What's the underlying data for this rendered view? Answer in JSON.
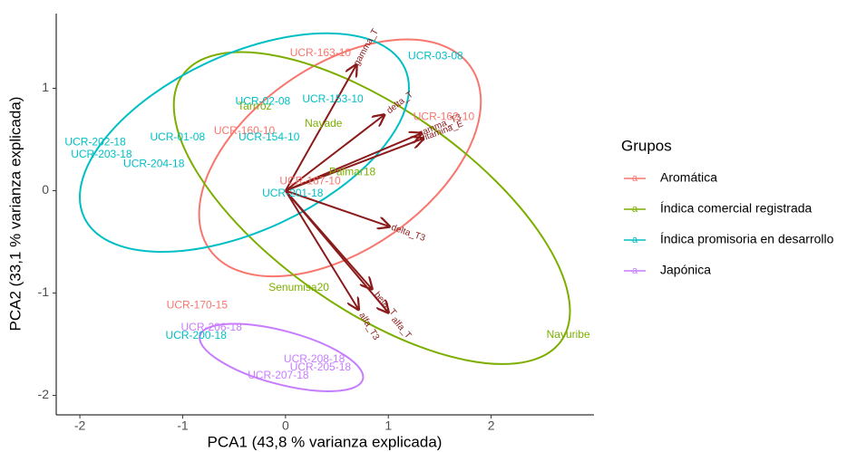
{
  "chart_data": {
    "type": "biplot",
    "x_label": "PCA1 (43,8 % varianza explicada)",
    "y_label": "PCA2 (33,1 % varianza explicada)",
    "xlim": [
      -2.23,
      3.0
    ],
    "ylim": [
      -2.19,
      1.73
    ],
    "xticks": [
      -2,
      -1,
      0,
      1,
      2
    ],
    "yticks": [
      -2,
      -1,
      0,
      1
    ],
    "legend_title": "Grupos",
    "series": [
      {
        "name": "Aromática",
        "color": "#F8766D",
        "labels": [
          "UCR-163-10",
          "UCR-162-10",
          "UCR-160-10",
          "UCR-167-10",
          "UCR-170-15"
        ],
        "x": [
          0.34,
          1.54,
          -0.4,
          0.24,
          -0.86
        ],
        "values": [
          1.34,
          0.72,
          0.58,
          0.09,
          -1.12
        ],
        "ellipse": {
          "center": [
            0.53,
            0.32
          ],
          "radii": [
            1.55,
            0.9
          ],
          "angle": 35
        }
      },
      {
        "name": "Índica comercial registrada",
        "color": "#7CAE00",
        "labels": [
          "Tarrroz",
          "Nayade",
          "Palmar18",
          "Senumisa20",
          "Nayuribe"
        ],
        "x": [
          -0.3,
          0.37,
          0.65,
          0.13,
          2.75
        ],
        "values": [
          0.82,
          0.65,
          0.18,
          -0.95,
          -1.41
        ],
        "ellipse": {
          "center": [
            0.84,
            -0.17
          ],
          "radii": [
            2.25,
            0.98
          ],
          "angle": -35
        }
      },
      {
        "name": "Índica promisoria en desarrollo",
        "color": "#00BFC4",
        "labels": [
          "UCR-03-08",
          "UCR-02-08",
          "UCR-153-10",
          "UCR-154-10",
          "UCR-01-08",
          "UCR-202-18",
          "UCR-203-18",
          "UCR-204-18",
          "UCR-201-18",
          "UCR-200-18"
        ],
        "x": [
          1.46,
          -0.22,
          0.46,
          -0.16,
          -1.05,
          -1.85,
          -1.79,
          -1.28,
          0.07,
          -0.87
        ],
        "values": [
          1.31,
          0.87,
          0.89,
          0.52,
          0.52,
          0.47,
          0.35,
          0.26,
          -0.03,
          -1.42
        ],
        "ellipse": {
          "center": [
            -0.4,
            0.47
          ],
          "radii": [
            1.72,
            0.86
          ],
          "angle": 25
        }
      },
      {
        "name": "Japónica",
        "color": "#C77CFF",
        "labels": [
          "UCR-206-18",
          "UCR-208-18",
          "UCR-205-18",
          "UCR-207-18"
        ],
        "x": [
          -0.72,
          0.28,
          0.34,
          -0.07
        ],
        "values": [
          -1.34,
          -1.65,
          -1.73,
          -1.81
        ],
        "ellipse": {
          "center": [
            -0.04,
            -1.63
          ],
          "radii": [
            0.82,
            0.26
          ],
          "angle": -15
        }
      }
    ],
    "loadings": {
      "color": "#8B1A1A",
      "names": [
        "gamma_T",
        "delta_T",
        "gamma_T3",
        "vitamina_E",
        "delta_T3",
        "alfa_T",
        "beta_T",
        "alfa_T3"
      ],
      "x": [
        0.69,
        0.96,
        1.32,
        1.34,
        1.01,
        1.0,
        0.84,
        0.71
      ],
      "values": [
        1.23,
        0.74,
        0.56,
        0.51,
        -0.35,
        -1.19,
        -0.96,
        -1.16
      ]
    }
  }
}
